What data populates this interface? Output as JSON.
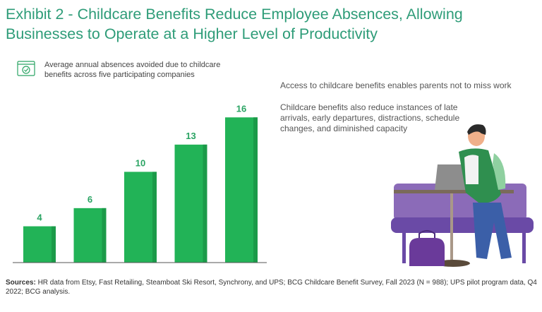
{
  "title": "Exhibit 2 - Childcare Benefits Reduce Employee Absences, Allowing Businesses to Operate at a Higher Level of Productivity",
  "legend": {
    "icon": "calendar-check-icon",
    "text": "Average annual absences avoided due to childcare benefits across five participating companies"
  },
  "notes": {
    "note1": "Access to childcare benefits enables parents not to miss work",
    "note2": "Childcare benefits also reduce instances of late arrivals, early departures,  distractions, schedule changes, and diminished capacity"
  },
  "sources": {
    "label": "Sources:",
    "text": " HR data from Etsy, Fast Retailing, Steamboat Ski Resort, Synchrony, and UPS; BCG Childcare Benefit Survey, Fall 2023 (N = 988); UPS pilot program data, Q4 2022; BCG analysis."
  },
  "colors": {
    "title": "#2e9c78",
    "bar": "#22b357",
    "bar_shade": "#1b9a49",
    "label": "#2aa463"
  },
  "chart_data": {
    "type": "bar",
    "title": "",
    "xlabel": "",
    "ylabel": "",
    "categories": [
      "",
      "",
      "",
      "",
      ""
    ],
    "values": [
      4,
      6,
      10,
      13,
      16
    ],
    "ylim": [
      0,
      17.5
    ],
    "grid": false,
    "data_labels": [
      "4",
      "6",
      "10",
      "13",
      "16"
    ]
  }
}
